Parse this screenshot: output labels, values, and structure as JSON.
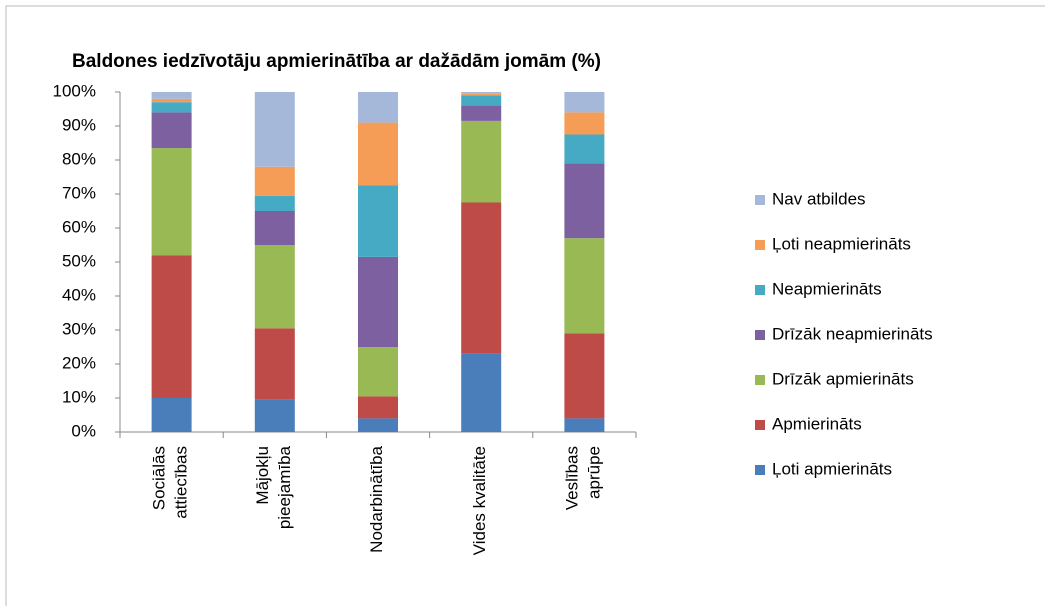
{
  "chart_data": {
    "type": "bar",
    "stacked": true,
    "title": "Baldones iedzīvotāju apmierinātība ar dažādām jomām (%)",
    "categories": [
      "Sociālās\nattiecības",
      "Mājokļu\npieejamība",
      "Nodarbinātība",
      "Vides kvalitāte",
      "Veslības\naprūpe"
    ],
    "series": [
      {
        "name": "Ļoti apmierināts",
        "color": "#4a7ebb",
        "values": [
          10,
          9.5,
          4,
          23,
          4
        ]
      },
      {
        "name": "Apmierināts",
        "color": "#be4b48",
        "values": [
          42,
          21,
          6.5,
          44.5,
          25
        ]
      },
      {
        "name": "Drīzāk apmierināts",
        "color": "#98b954",
        "values": [
          31.5,
          24.5,
          14.5,
          24,
          28
        ]
      },
      {
        "name": "Drīzāk neapmierināts",
        "color": "#7d60a0",
        "values": [
          10.5,
          10,
          26.5,
          4.5,
          22
        ]
      },
      {
        "name": "Neapmierināts",
        "color": "#46aac5",
        "values": [
          3,
          4.5,
          21,
          3,
          8.5
        ]
      },
      {
        "name": "Ļoti neapmierināts",
        "color": "#f59d56",
        "values": [
          1,
          8.5,
          18.5,
          0.5,
          6.5
        ]
      },
      {
        "name": "Nav atbildes",
        "color": "#a5b8da",
        "values": [
          2,
          22,
          9,
          0.5,
          6
        ]
      }
    ],
    "ylim": [
      0,
      100
    ],
    "yticks": [
      {
        "value": 0,
        "label": "0%"
      },
      {
        "value": 10,
        "label": "10%"
      },
      {
        "value": 20,
        "label": "20%"
      },
      {
        "value": 30,
        "label": "30%"
      },
      {
        "value": 40,
        "label": "40%"
      },
      {
        "value": 50,
        "label": "50%"
      },
      {
        "value": 60,
        "label": "60%"
      },
      {
        "value": 70,
        "label": "70%"
      },
      {
        "value": 80,
        "label": "80%"
      },
      {
        "value": 90,
        "label": "90%"
      },
      {
        "value": 100,
        "label": "100%"
      }
    ],
    "legend": "right",
    "grid": false
  }
}
